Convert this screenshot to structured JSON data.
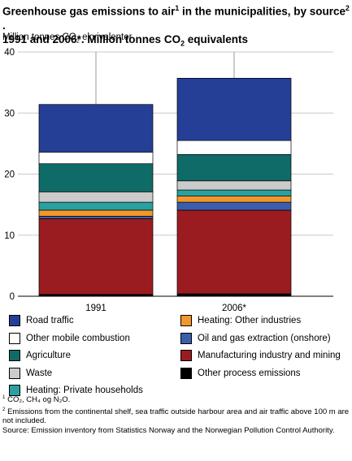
{
  "title_line1": "Greenhouse gas emissions to air",
  "title_sup1": "1",
  "title_line1_mid": " in the municipalities, by source",
  "title_sup2": "2",
  "title_line1_end": " .",
  "title_line2": "1991 and 2006*. Million tonnes CO",
  "title_sub": "2",
  "title_line2_end": " equivalents",
  "ylabel_main": "Million tonnes CO",
  "ylabel_sub": "2",
  "ylabel_end": " ekvivalenter",
  "footnote1_mark": "1",
  "footnote1_text": " CO₂, CH₄ og N₂O.",
  "footnote2_mark": "2",
  "footnote2_text": " Emissions from the continental shelf, sea traffic outside harbour area and air traffic above 100 m are not included.",
  "source": "Source: Emission inventory from Statistics Norway and the Norwegian Pollution Control Authority.",
  "chart_data": {
    "type": "bar",
    "stacked": true,
    "categories": [
      "1991",
      "2006*"
    ],
    "ylim": [
      0,
      40
    ],
    "yticks": [
      "0",
      "10",
      "20",
      "30",
      "40"
    ],
    "ylabel": "Million tonnes CO2 ekvivalenter",
    "grid": true,
    "series": [
      {
        "name": "Other process emissions",
        "color": "#000000",
        "values": [
          0.3,
          0.4
        ]
      },
      {
        "name": "Manufacturing industry and mining",
        "color": "#9b1c20",
        "values": [
          12.4,
          13.7
        ]
      },
      {
        "name": "Oil and gas extraction (onshore)",
        "color": "#3a5eac",
        "values": [
          0.4,
          1.3
        ]
      },
      {
        "name": "Heating: Other industries",
        "color": "#f2982a",
        "values": [
          1.0,
          1.0
        ]
      },
      {
        "name": "Heating: Private households",
        "color": "#2aa0a0",
        "values": [
          1.3,
          1.0
        ]
      },
      {
        "name": "Waste",
        "color": "#cbcbcb",
        "values": [
          1.7,
          1.5
        ]
      },
      {
        "name": "Agriculture",
        "color": "#0f6b68",
        "values": [
          4.6,
          4.3
        ]
      },
      {
        "name": "Other mobile combustion",
        "color": "#ffffff",
        "values": [
          1.9,
          2.3
        ]
      },
      {
        "name": "Road traffic",
        "color": "#253f96",
        "values": [
          7.8,
          10.2
        ]
      }
    ]
  },
  "legend_left": [
    {
      "label": "Road traffic",
      "color": "#253f96"
    },
    {
      "label": "Other mobile combustion",
      "color": "#ffffff"
    },
    {
      "label": "Agriculture",
      "color": "#0f6b68"
    },
    {
      "label": "Waste",
      "color": "#cbcbcb"
    },
    {
      "label": "Heating: Private households",
      "color": "#2aa0a0"
    }
  ],
  "legend_right": [
    {
      "label": "Heating: Other industries",
      "color": "#f2982a"
    },
    {
      "label": "Oil and gas extraction (onshore)",
      "color": "#3a5eac"
    },
    {
      "label": "Manufacturing industry and mining",
      "color": "#9b1c20"
    },
    {
      "label": "Other process emissions",
      "color": "#000000"
    }
  ]
}
